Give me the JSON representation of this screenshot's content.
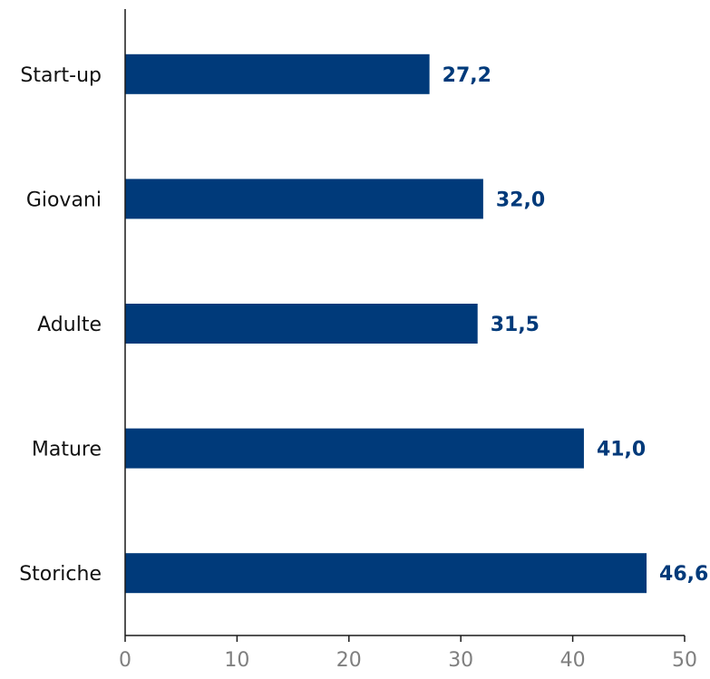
{
  "chart_data": {
    "type": "bar",
    "orientation": "horizontal",
    "categories": [
      "Start-up",
      "Giovani",
      "Adulte",
      "Mature",
      "Storiche"
    ],
    "values": [
      27.2,
      32.0,
      31.5,
      41.0,
      46.6
    ],
    "value_labels": [
      "27,2",
      "32,0",
      "31,5",
      "41,0",
      "46,6"
    ],
    "title": "",
    "xlabel": "",
    "ylabel": "",
    "xlim": [
      0,
      50
    ],
    "ticks": [
      0,
      10,
      20,
      30,
      40,
      50
    ],
    "tick_labels": [
      "0",
      "10",
      "20",
      "30",
      "40",
      "50"
    ],
    "grid": false,
    "legend": "none",
    "colors": {
      "bar": "#003a7a",
      "value_label": "#003a7a",
      "axis": "#1a1a1a",
      "tick_label": "#7f7f7f",
      "category_label": "#111111"
    }
  }
}
